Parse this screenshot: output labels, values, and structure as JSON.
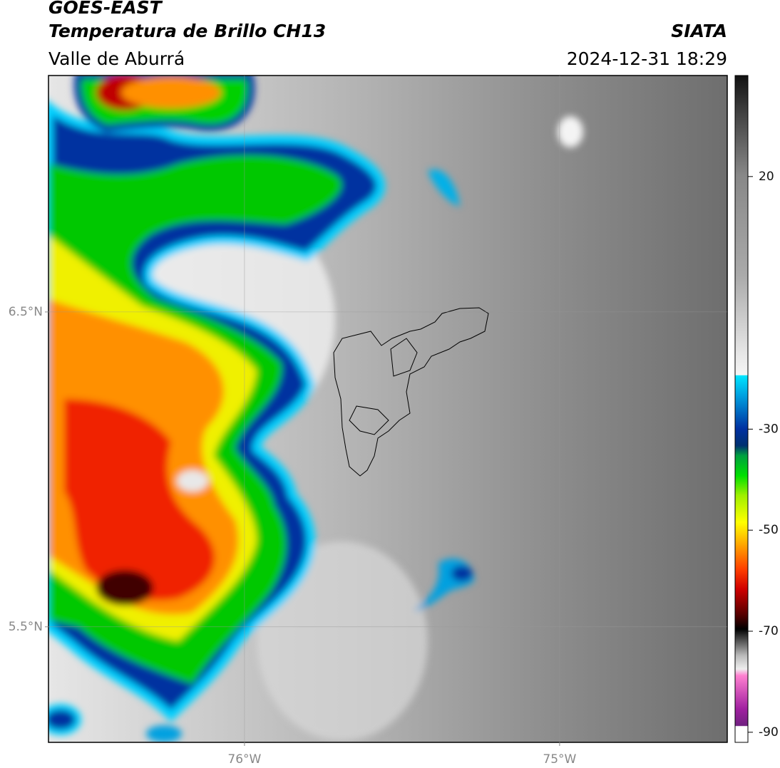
{
  "header": {
    "title": "GOES-EAST",
    "subtitle": "Temperatura de Brillo CH13",
    "region": "Valle de Aburrá",
    "source": "SIATA",
    "timestamp": "2024-12-31 18:29"
  },
  "map": {
    "lat_range": [
      5.133,
      7.251
    ],
    "lon_range": [
      -76.622,
      -74.468
    ],
    "lat_ticks": [
      {
        "value": 6.5,
        "label": "6.5°N"
      },
      {
        "value": 5.5,
        "label": "5.5°N"
      }
    ],
    "lon_ticks": [
      {
        "value": -76,
        "label": "76°W"
      },
      {
        "value": -75,
        "label": "75°W"
      }
    ],
    "grid": true
  },
  "colorbar": {
    "range": [
      -92,
      40
    ],
    "ticks": [
      20,
      -30,
      -50,
      -70,
      -90
    ]
  }
}
